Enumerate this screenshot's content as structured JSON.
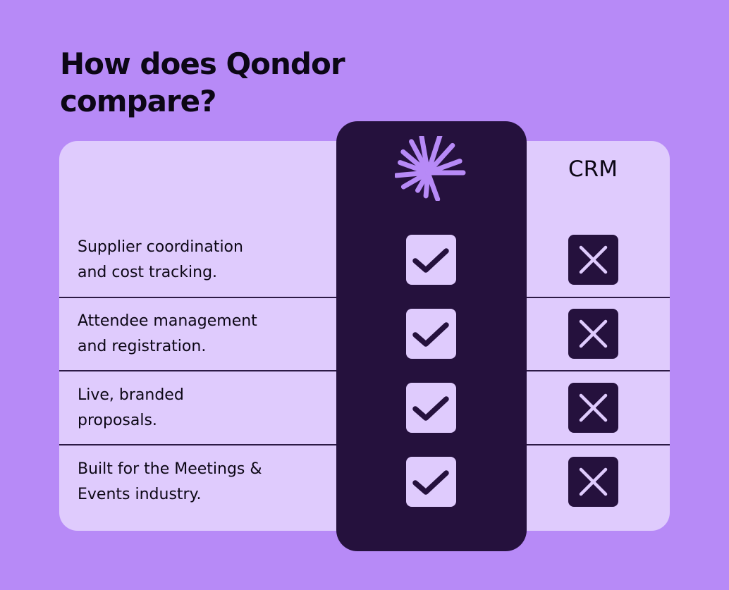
{
  "title": "How does Qondor compare?",
  "columns": {
    "qondor_icon": "qondor-starburst-logo-icon",
    "crm_label": "CRM"
  },
  "features": [
    {
      "label": "Supplier coordination\nand cost tracking.",
      "qondor": true,
      "crm": false
    },
    {
      "label": "Attendee management\nand registration.",
      "qondor": true,
      "crm": false
    },
    {
      "label": "Live, branded\nproposals.",
      "qondor": true,
      "crm": false
    },
    {
      "label": "Built for the Meetings &\nEvents industry.",
      "qondor": true,
      "crm": false
    }
  ],
  "colors": {
    "background": "#b78af7",
    "panel": "#dfcbfd",
    "dark": "#25113d",
    "accent": "#b78af7",
    "text": "#0c0715"
  }
}
